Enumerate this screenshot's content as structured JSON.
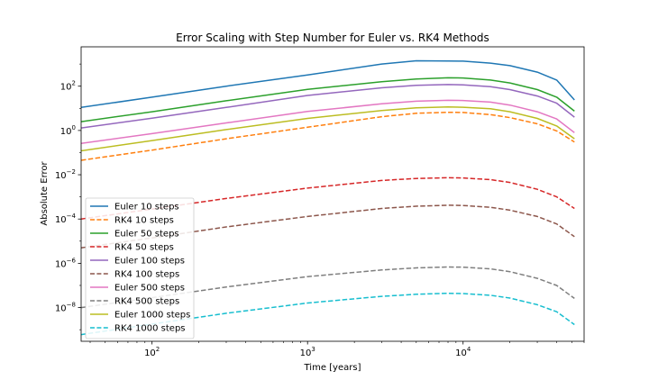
{
  "chart_data": {
    "type": "line",
    "title": "Error Scaling with Step Number for Euler vs. RK4 Methods",
    "xlabel": "Time [years]",
    "ylabel": "Absolute Error",
    "xscale": "log",
    "yscale": "log",
    "xlim": [
      35,
      60000
    ],
    "ylim": [
      3e-10,
      6000
    ],
    "x_ticks": [
      {
        "value": 100,
        "base": "10",
        "exp": "2"
      },
      {
        "value": 1000,
        "base": "10",
        "exp": "3"
      },
      {
        "value": 10000,
        "base": "10",
        "exp": "4"
      }
    ],
    "y_ticks": [
      {
        "value": 1e-08,
        "base": "10",
        "exp": "−8"
      },
      {
        "value": 1e-06,
        "base": "10",
        "exp": "−6"
      },
      {
        "value": 0.0001,
        "base": "10",
        "exp": "−4"
      },
      {
        "value": 0.01,
        "base": "10",
        "exp": "−2"
      },
      {
        "value": 1,
        "base": "10",
        "exp": "0"
      },
      {
        "value": 100,
        "base": "10",
        "exp": "2"
      }
    ],
    "grid": false,
    "legend_position": "lower-left",
    "series": [
      {
        "name": "Euler 10 steps",
        "color": "#1f77b4",
        "dash": "solid",
        "points": [
          [
            35,
            11
          ],
          [
            100,
            32
          ],
          [
            300,
            100
          ],
          [
            1000,
            320
          ],
          [
            3000,
            1000
          ],
          [
            5000,
            1400
          ],
          [
            8000,
            1380
          ],
          [
            10000,
            1350
          ],
          [
            15000,
            1100
          ],
          [
            20000,
            850
          ],
          [
            30000,
            430
          ],
          [
            40000,
            190
          ],
          [
            52000,
            24
          ]
        ]
      },
      {
        "name": "RK4 10 steps",
        "color": "#ff7f0e",
        "dash": "dashed",
        "points": [
          [
            35,
            0.045
          ],
          [
            100,
            0.13
          ],
          [
            300,
            0.42
          ],
          [
            1000,
            1.4
          ],
          [
            3000,
            4.2
          ],
          [
            5000,
            6.0
          ],
          [
            8000,
            6.6
          ],
          [
            10000,
            6.5
          ],
          [
            15000,
            5.2
          ],
          [
            20000,
            3.8
          ],
          [
            30000,
            2.0
          ],
          [
            40000,
            0.95
          ],
          [
            52000,
            0.3
          ]
        ]
      },
      {
        "name": "Euler 50 steps",
        "color": "#2ca02c",
        "dash": "solid",
        "points": [
          [
            35,
            2.5
          ],
          [
            100,
            7
          ],
          [
            300,
            22
          ],
          [
            1000,
            72
          ],
          [
            3000,
            160
          ],
          [
            5000,
            210
          ],
          [
            8000,
            240
          ],
          [
            10000,
            235
          ],
          [
            15000,
            190
          ],
          [
            20000,
            140
          ],
          [
            30000,
            70
          ],
          [
            40000,
            32
          ],
          [
            52000,
            7.5
          ]
        ]
      },
      {
        "name": "RK4 50 steps",
        "color": "#d62728",
        "dash": "dashed",
        "points": [
          [
            35,
            0.0001
          ],
          [
            100,
            0.00028
          ],
          [
            300,
            0.00085
          ],
          [
            1000,
            0.0025
          ],
          [
            3000,
            0.0055
          ],
          [
            5000,
            0.0068
          ],
          [
            8000,
            0.0073
          ],
          [
            10000,
            0.0072
          ],
          [
            15000,
            0.006
          ],
          [
            20000,
            0.0045
          ],
          [
            30000,
            0.0022
          ],
          [
            40000,
            0.001
          ],
          [
            52000,
            0.0003
          ]
        ]
      },
      {
        "name": "Euler 100 steps",
        "color": "#9467bd",
        "dash": "solid",
        "points": [
          [
            35,
            1.3
          ],
          [
            100,
            3.6
          ],
          [
            300,
            11
          ],
          [
            1000,
            38
          ],
          [
            3000,
            85
          ],
          [
            5000,
            110
          ],
          [
            8000,
            118
          ],
          [
            10000,
            115
          ],
          [
            15000,
            95
          ],
          [
            20000,
            70
          ],
          [
            30000,
            36
          ],
          [
            40000,
            17
          ],
          [
            52000,
            4
          ]
        ]
      },
      {
        "name": "RK4 100 steps",
        "color": "#8c564b",
        "dash": "dashed",
        "points": [
          [
            35,
            5e-06
          ],
          [
            100,
            1.4e-05
          ],
          [
            300,
            4.4e-05
          ],
          [
            1000,
            0.00013
          ],
          [
            3000,
            0.0003
          ],
          [
            5000,
            0.00038
          ],
          [
            8000,
            0.00042
          ],
          [
            10000,
            0.00041
          ],
          [
            15000,
            0.00034
          ],
          [
            20000,
            0.00025
          ],
          [
            30000,
            0.00013
          ],
          [
            40000,
            6e-05
          ],
          [
            52000,
            1.6e-05
          ]
        ]
      },
      {
        "name": "Euler 500 steps",
        "color": "#e377c2",
        "dash": "solid",
        "points": [
          [
            35,
            0.26
          ],
          [
            100,
            0.72
          ],
          [
            300,
            2.2
          ],
          [
            1000,
            7.2
          ],
          [
            3000,
            16
          ],
          [
            5000,
            21
          ],
          [
            8000,
            23
          ],
          [
            10000,
            22.5
          ],
          [
            15000,
            19
          ],
          [
            20000,
            14
          ],
          [
            30000,
            7
          ],
          [
            40000,
            3.3
          ],
          [
            52000,
            0.8
          ]
        ]
      },
      {
        "name": "RK4 500 steps",
        "color": "#7f7f7f",
        "dash": "dashed",
        "points": [
          [
            35,
            1e-08
          ],
          [
            100,
            2.8e-08
          ],
          [
            300,
            8.5e-08
          ],
          [
            1000,
            2.5e-07
          ],
          [
            3000,
            5e-07
          ],
          [
            5000,
            6.2e-07
          ],
          [
            8000,
            6.8e-07
          ],
          [
            10000,
            6.7e-07
          ],
          [
            15000,
            5.6e-07
          ],
          [
            20000,
            4.2e-07
          ],
          [
            30000,
            2.1e-07
          ],
          [
            40000,
            1e-07
          ],
          [
            52000,
            2.6e-08
          ]
        ]
      },
      {
        "name": "Euler 1000 steps",
        "color": "#bcbd22",
        "dash": "solid",
        "points": [
          [
            35,
            0.12
          ],
          [
            100,
            0.35
          ],
          [
            300,
            1.1
          ],
          [
            1000,
            3.5
          ],
          [
            3000,
            8
          ],
          [
            5000,
            10.5
          ],
          [
            8000,
            11.5
          ],
          [
            10000,
            11.2
          ],
          [
            15000,
            9.5
          ],
          [
            20000,
            7
          ],
          [
            30000,
            3.5
          ],
          [
            40000,
            1.6
          ],
          [
            52000,
            0.42
          ]
        ]
      },
      {
        "name": "RK4 1000 steps",
        "color": "#17becf",
        "dash": "dashed",
        "points": [
          [
            35,
            6e-10
          ],
          [
            100,
            1.8e-09
          ],
          [
            300,
            5.5e-09
          ],
          [
            1000,
            1.6e-08
          ],
          [
            3000,
            3.2e-08
          ],
          [
            5000,
            4e-08
          ],
          [
            8000,
            4.4e-08
          ],
          [
            10000,
            4.3e-08
          ],
          [
            15000,
            3.6e-08
          ],
          [
            20000,
            2.7e-08
          ],
          [
            30000,
            1.35e-08
          ],
          [
            40000,
            6.5e-09
          ],
          [
            52000,
            1.7e-09
          ]
        ]
      }
    ]
  }
}
